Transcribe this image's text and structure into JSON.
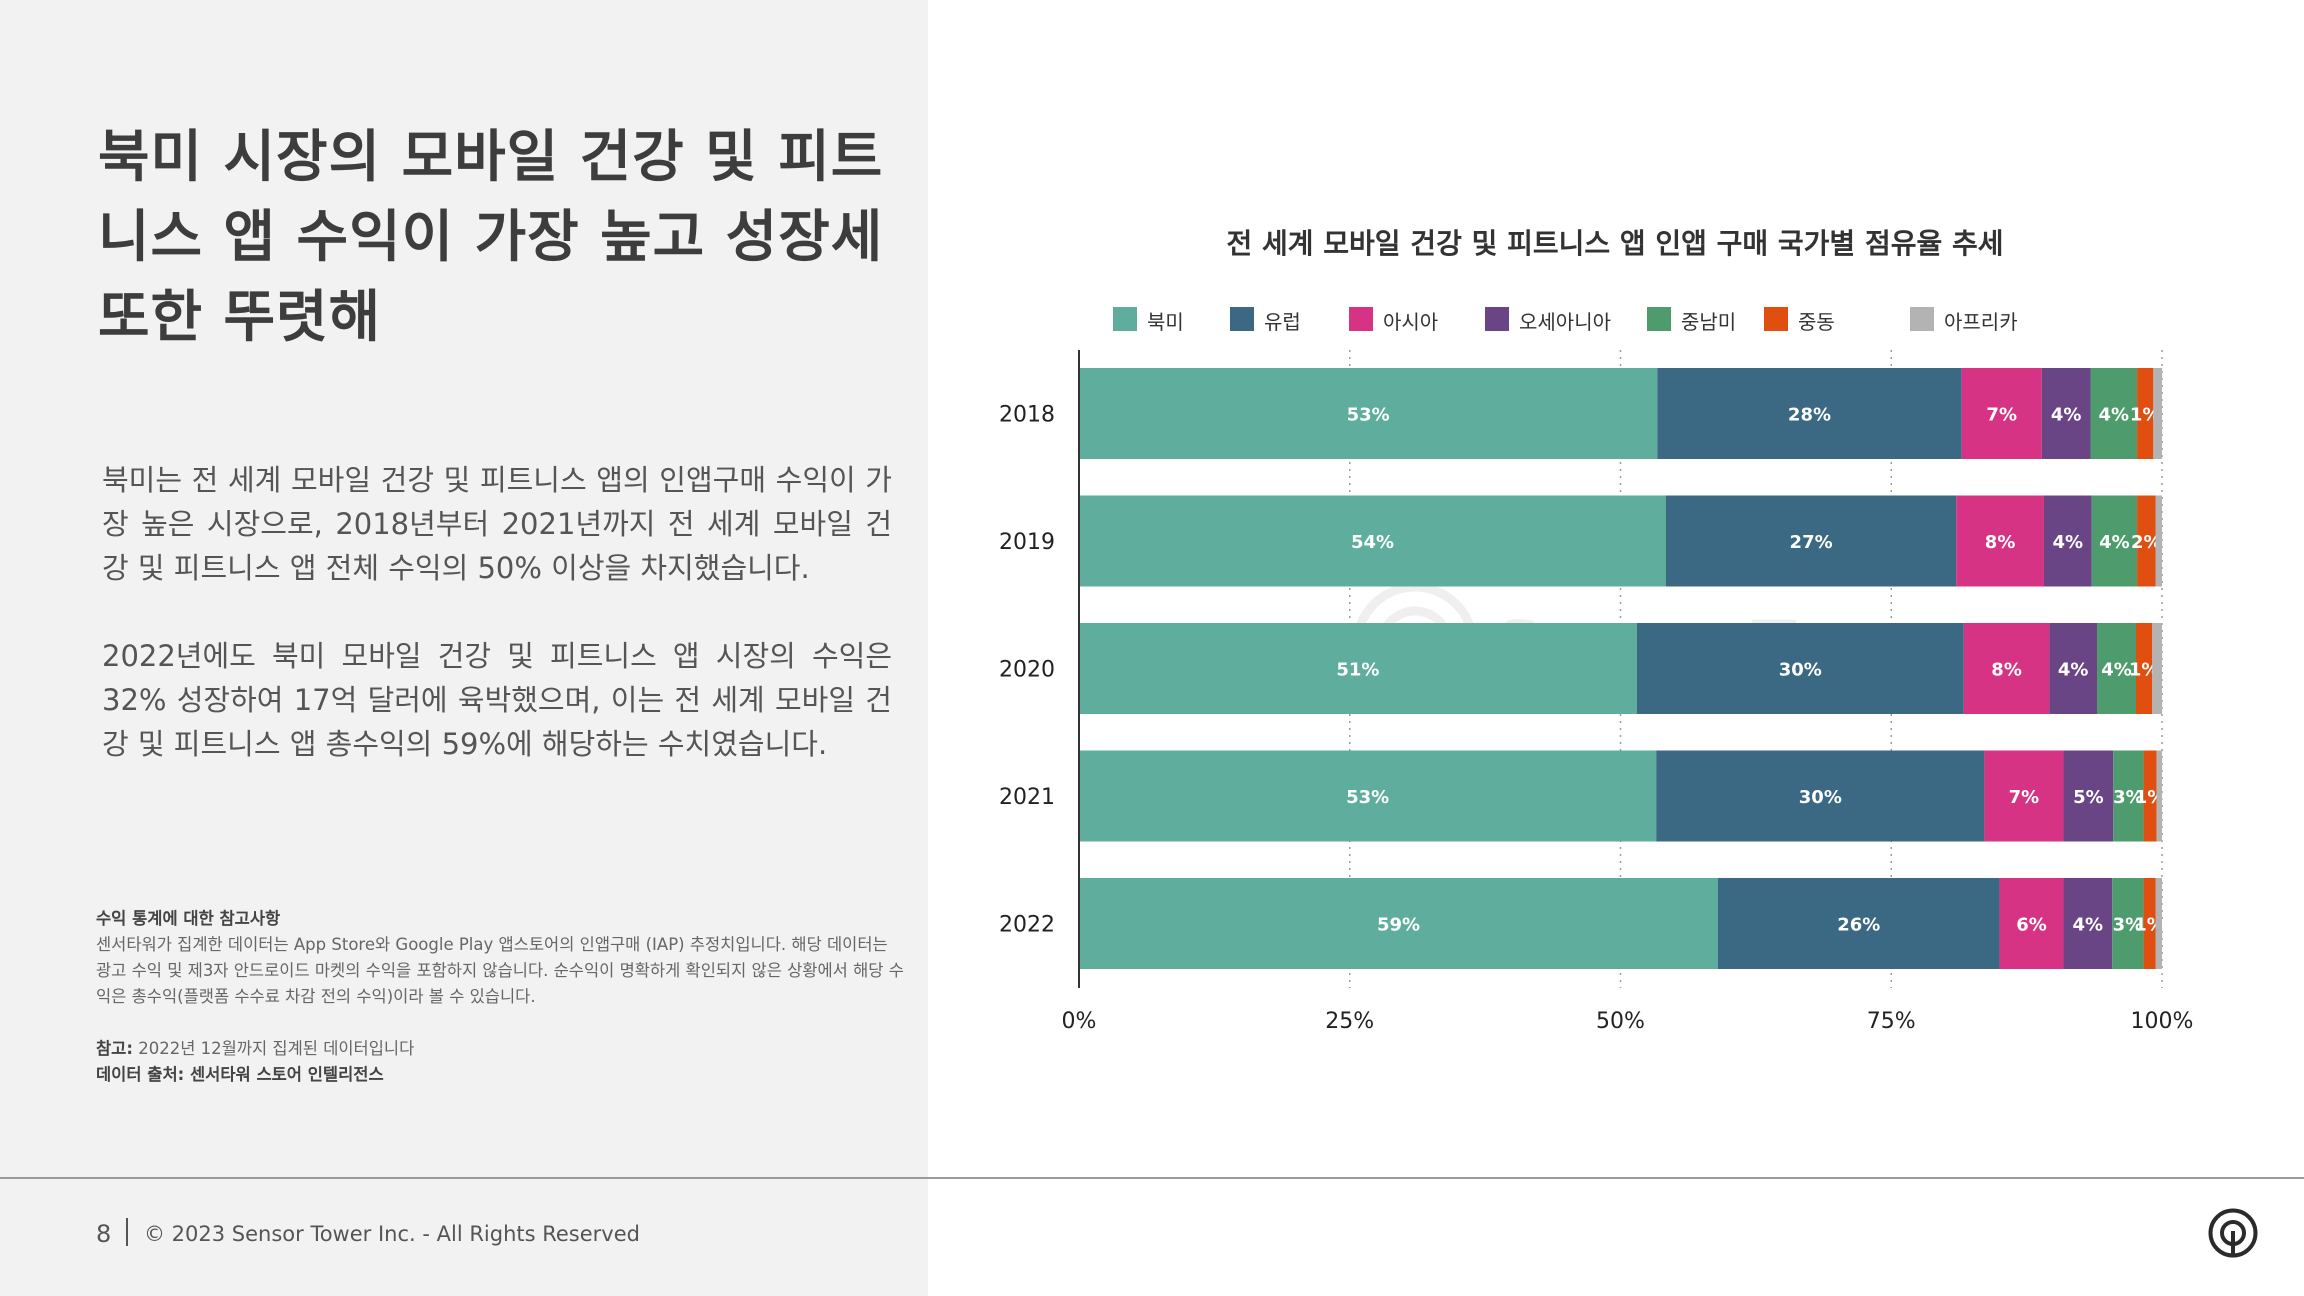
{
  "title": "북미 시장의 모바일 건강 및 피트니스 앱 수익이 가장 높고 성장세 또한 뚜렷해",
  "paragraph1": "북미는 전 세계 모바일 건강 및 피트니스 앱의 인앱구매 수익이 가장 높은 시장으로, 2018년부터 2021년까지 전 세계 모바일 건강 및 피트니스 앱 전체 수익의 50% 이상을 차지했습니다.",
  "paragraph2": "2022년에도 북미 모바일 건강 및 피트니스 앱 시장의 수익은 32% 성장하여 17억 달러에 육박했으며, 이는 전 세계 모바일 건강 및 피트니스 앱 총수익의 59%에 해당하는 수치였습니다.",
  "notes": {
    "heading": "수익 통계에 대한 참고사항",
    "body": "센서타워가 집계한 데이터는 App Store와 Google Play 앱스토어의 인앱구매 (IAP) 추정치입니다. 해당 데이터는 광고 수익 및 제3자 안드로이드 마켓의 수익을 포함하지 않습니다. 순수익이 명확하게 확인되지 않은 상황에서 해당 수익은 총수익(플랫폼 수수료 차감 전의 수익)이라 볼 수 있습니다.",
    "reference_label": "참고:",
    "reference_text": "2022년 12월까지 집계된 데이터입니다",
    "source": "데이터 출처: 센서타워 스토어 인텔리전스"
  },
  "footer": {
    "page_number": "8",
    "copyright": "© 2023 Sensor Tower Inc. - All Rights Reserved"
  },
  "watermark_text": "SensorTower",
  "icons": {
    "logo": "sensor-tower-logo-icon"
  },
  "chart_data": {
    "type": "bar",
    "orientation": "horizontal",
    "stacked": true,
    "title": "전 세계 모바일 건강 및 피트니스 앱 인앱 구매 국가별 점유율 추세",
    "categories": [
      "2018",
      "2019",
      "2020",
      "2021",
      "2022"
    ],
    "xlim": [
      0,
      100
    ],
    "xticks": [
      "0%",
      "25%",
      "50%",
      "75%",
      "100%"
    ],
    "grid": "vertical-dotted",
    "legend_position": "top",
    "series": [
      {
        "name": "북미",
        "color": "#5ead9d",
        "values": [
          53.4,
          54.2,
          51.5,
          53.3,
          59.0
        ],
        "labels": [
          "53%",
          "54%",
          "51%",
          "53%",
          "59%"
        ]
      },
      {
        "name": "유럽",
        "color": "#3b6882",
        "values": [
          28.1,
          26.8,
          30.2,
          30.3,
          26.0
        ],
        "labels": [
          "28%",
          "27%",
          "30%",
          "30%",
          "26%"
        ]
      },
      {
        "name": "아시아",
        "color": "#d63384",
        "values": [
          7.4,
          8.1,
          7.9,
          7.3,
          5.9
        ],
        "labels": [
          "7%",
          "8%",
          "8%",
          "7%",
          "6%"
        ]
      },
      {
        "name": "오세아니아",
        "color": "#6a4586",
        "values": [
          4.5,
          4.4,
          4.4,
          4.6,
          4.5
        ],
        "labels": [
          "4%",
          "4%",
          "4%",
          "5%",
          "4%"
        ]
      },
      {
        "name": "중남미",
        "color": "#4e9c6d",
        "values": [
          4.3,
          4.2,
          3.6,
          2.8,
          2.9
        ],
        "labels": [
          "4%",
          "4%",
          "4%",
          "3%",
          "3%"
        ]
      },
      {
        "name": "중동",
        "color": "#e04e10",
        "values": [
          1.5,
          1.7,
          1.5,
          1.2,
          1.1
        ],
        "labels": [
          "1%",
          "2%",
          "1%",
          "1%",
          "1%"
        ]
      },
      {
        "name": "아프리카",
        "color": "#b3b3b3",
        "values": [
          0.8,
          0.6,
          0.9,
          0.5,
          0.6
        ],
        "labels": [
          "",
          "",
          "",
          "",
          ""
        ]
      }
    ]
  }
}
